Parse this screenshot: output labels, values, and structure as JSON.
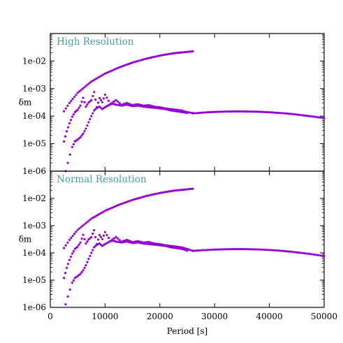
{
  "chart_data": {
    "type": "scatter",
    "xlabel": "Period [s]",
    "xlim": [
      0,
      50000
    ],
    "x_ticks": [
      0,
      10000,
      20000,
      30000,
      40000,
      50000
    ],
    "x_tick_labels": [
      "0",
      "10000",
      "20000",
      "30000",
      "40000",
      "50000"
    ],
    "grid": false,
    "marker_color": "#9400d3",
    "title_color": "#4a9aa5",
    "panels": [
      {
        "title": "High Resolution",
        "ylabel": "δm",
        "yscale": "log",
        "ylim": [
          1e-06,
          0.1
        ],
        "y_ticks": [
          1e-06,
          1e-05,
          0.0001,
          0.001,
          0.01
        ],
        "y_tick_labels": [
          "1e-06",
          "1e-05",
          "1e-04",
          "1e-03",
          "1e-02"
        ],
        "series": [
          {
            "x": [
              2500,
              3500,
              5000,
              7500,
              10000,
              12500,
              15000,
              17500,
              20000,
              22500,
              26000
            ],
            "y": [
              0.00015,
              0.0003,
              0.0007,
              0.0018,
              0.0035,
              0.0058,
              0.0088,
              0.0122,
              0.0158,
              0.0192,
              0.0225
            ]
          },
          {
            "x": [
              2500,
              3000,
              3500,
              4000,
              4500,
              5000,
              5500,
              6000,
              6500,
              7000,
              7500,
              8000,
              8500,
              9000,
              9500,
              10000,
              11000,
              12000,
              13000,
              14000,
              15000,
              16000,
              17000,
              18000,
              19000,
              20000,
              21000,
              22000,
              23000,
              24000,
              25000,
              26000
            ],
            "y": [
              1.2e-05,
              2.8e-05,
              5.5e-05,
              9.5e-05,
              0.00014,
              0.00017,
              0.00024,
              0.00046,
              0.00022,
              0.00031,
              0.00038,
              0.00075,
              0.00021,
              0.00045,
              0.00032,
              0.0006,
              0.00028,
              0.00038,
              0.00026,
              0.0003,
              0.00025,
              0.00027,
              0.00024,
              0.00025,
              0.00022,
              0.00021,
              0.00019,
              0.00018,
              0.00017,
              0.00016,
              0.00014,
              0.00013
            ]
          },
          {
            "x": [
              2800,
              3200,
              3600,
              4000,
              4500,
              5000,
              5500,
              6000,
              6500,
              7000,
              7500,
              8000,
              8500,
              9000,
              9500,
              10000,
              10500,
              11000,
              11500,
              12000,
              13000,
              14000,
              15000,
              16000,
              17000,
              18000,
              19000,
              20000,
              21000,
              22000,
              23000,
              24000,
              25000
            ],
            "y": [
              1e-06,
              2e-06,
              4e-06,
              7.5e-06,
              1.2e-05,
              1.4e-05,
              1.7e-05,
              2.3e-05,
              3.5e-05,
              6e-05,
              0.0001,
              0.00016,
              0.0002,
              0.00022,
              0.00018,
              0.00021,
              0.00024,
              0.00027,
              0.00028,
              0.00026,
              0.00024,
              0.00026,
              0.00023,
              0.00024,
              0.00022,
              0.00021,
              0.0002,
              0.00019,
              0.00018,
              0.00016,
              0.00015,
              0.00014,
              0.00013
            ]
          },
          {
            "x": [
              26000,
              28000,
              30000,
              32000,
              34000,
              36000,
              38000,
              40000,
              42000,
              44000,
              46000,
              48000,
              50000
            ],
            "y": [
              0.000125,
              0.000135,
              0.000142,
              0.000146,
              0.000148,
              0.000147,
              0.000144,
              0.000138,
              0.00013,
              0.00012,
              0.000108,
              9.6e-05,
              8.5e-05
            ]
          }
        ]
      },
      {
        "title": "Normal Resolution",
        "ylabel": "δm",
        "yscale": "log",
        "ylim": [
          1e-06,
          0.1
        ],
        "y_ticks": [
          1e-06,
          1e-05,
          0.0001,
          0.001,
          0.01
        ],
        "y_tick_labels": [
          "1e-06",
          "1e-05",
          "1e-04",
          "1e-03",
          "1e-02"
        ],
        "series": [
          {
            "x": [
              2500,
              3500,
              5000,
              7500,
              10000,
              12500,
              15000,
              17500,
              20000,
              22500,
              26000
            ],
            "y": [
              0.00015,
              0.0003,
              0.0007,
              0.0018,
              0.0035,
              0.0058,
              0.0088,
              0.0122,
              0.0158,
              0.0192,
              0.0225
            ]
          },
          {
            "x": [
              2500,
              3000,
              3500,
              4000,
              4500,
              5000,
              5500,
              6000,
              6500,
              7000,
              7500,
              8000,
              8500,
              9000,
              9500,
              10000,
              11000,
              12000,
              13000,
              14000,
              15000,
              16000,
              17000,
              18000,
              19000,
              20000,
              21000,
              22000,
              23000,
              24000,
              25000,
              26000
            ],
            "y": [
              1.2e-05,
              2.8e-05,
              5.5e-05,
              9.5e-05,
              0.00014,
              0.00017,
              0.00024,
              0.00046,
              0.00022,
              0.00031,
              0.00038,
              0.00068,
              0.00021,
              0.00045,
              0.00032,
              0.00058,
              0.00028,
              0.00038,
              0.00026,
              0.0003,
              0.00025,
              0.00027,
              0.00024,
              0.00025,
              0.00022,
              0.00021,
              0.00019,
              0.00018,
              0.00017,
              0.00016,
              0.00014,
              0.00012
            ]
          },
          {
            "x": [
              2800,
              3200,
              3600,
              4000,
              4500,
              5000,
              5500,
              6000,
              6500,
              7000,
              7500,
              8000,
              8500,
              9000,
              9500,
              10000,
              10500,
              11000,
              11500,
              12000,
              13000,
              14000,
              15000,
              16000,
              17000,
              18000,
              19000,
              20000,
              21000,
              22000,
              23000,
              24000,
              25000
            ],
            "y": [
              1.3e-06,
              2.5e-06,
              4.5e-06,
              8e-06,
              1.2e-05,
              1.4e-05,
              1.7e-05,
              2.3e-05,
              3.5e-05,
              6e-05,
              0.0001,
              0.00016,
              0.0002,
              0.00022,
              0.00018,
              0.00021,
              0.00024,
              0.00027,
              0.00028,
              0.00026,
              0.00024,
              0.00026,
              0.00023,
              0.00024,
              0.00022,
              0.00021,
              0.0002,
              0.00019,
              0.00018,
              0.00016,
              0.00015,
              0.00014,
              0.00012
            ]
          },
          {
            "x": [
              26000,
              28000,
              30000,
              32000,
              34000,
              36000,
              38000,
              40000,
              42000,
              44000,
              46000,
              48000,
              50000
            ],
            "y": [
              0.000118,
              0.000126,
              0.000132,
              0.000136,
              0.000138,
              0.000137,
              0.000134,
              0.000128,
              0.00012,
              0.00011,
              9.9e-05,
              8.8e-05,
              7.7e-05
            ]
          }
        ]
      }
    ]
  }
}
